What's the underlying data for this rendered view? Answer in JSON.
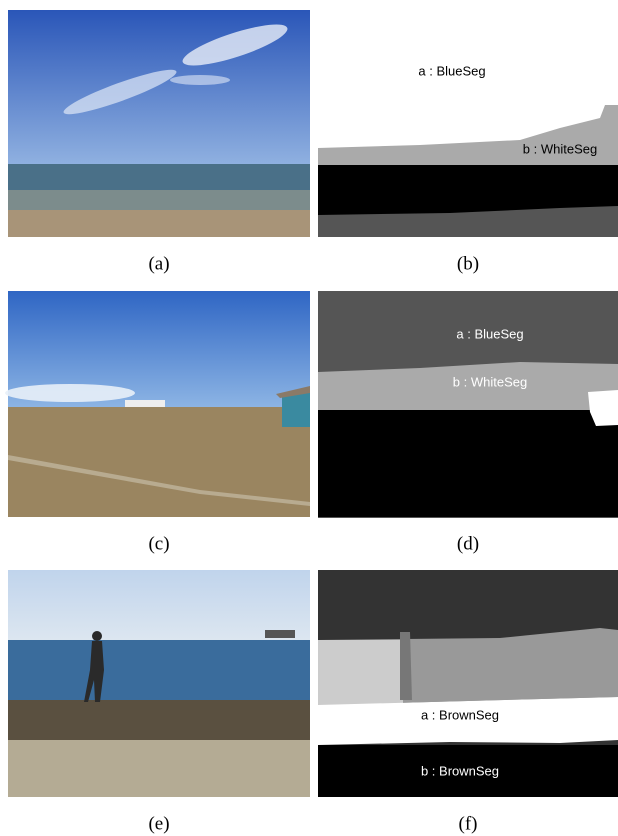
{
  "panels": [
    {
      "caption": "(a)"
    },
    {
      "caption": "(b)",
      "labels": [
        "a : BlueSeg",
        "b : WhiteSeg"
      ]
    },
    {
      "caption": "(c)"
    },
    {
      "caption": "(d)",
      "labels": [
        "a : BlueSeg",
        "b : WhiteSeg"
      ]
    },
    {
      "caption": "(e)"
    },
    {
      "caption": "(f)",
      "labels": [
        "a : BrownSeg",
        "b : BrownSeg"
      ]
    }
  ]
}
